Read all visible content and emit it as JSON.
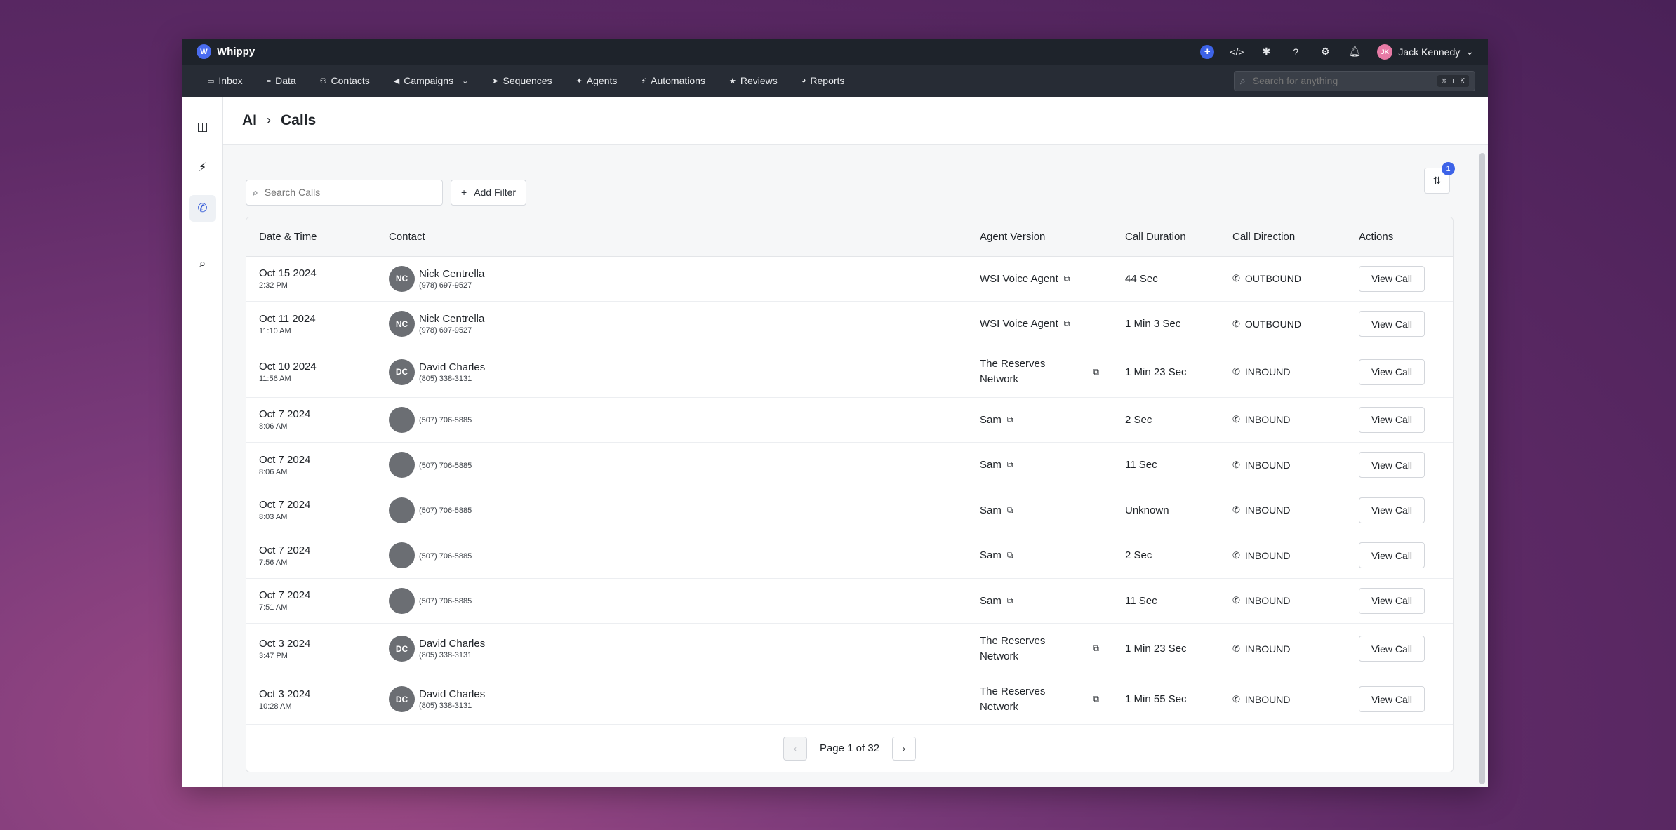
{
  "app": {
    "name": "Whippy"
  },
  "topbar": {
    "user_initials": "JK",
    "user_name": "Jack Kennedy"
  },
  "nav": {
    "items": [
      {
        "label": "Inbox",
        "icon": "inbox-icon"
      },
      {
        "label": "Data",
        "icon": "database-icon"
      },
      {
        "label": "Contacts",
        "icon": "contacts-icon"
      },
      {
        "label": "Campaigns",
        "icon": "megaphone-icon"
      },
      {
        "label": "Sequences",
        "icon": "send-icon"
      },
      {
        "label": "Agents",
        "icon": "sparkle-icon"
      },
      {
        "label": "Automations",
        "icon": "bolt-icon"
      },
      {
        "label": "Reviews",
        "icon": "star-icon"
      },
      {
        "label": "Reports",
        "icon": "pie-chart-icon"
      }
    ],
    "search_placeholder": "Search for anything",
    "search_shortcut": "⌘ + K"
  },
  "breadcrumb": {
    "parent": "AI",
    "current": "Calls"
  },
  "toolbar": {
    "search_placeholder": "Search Calls",
    "add_filter_label": "Add Filter",
    "sort_badge": "1"
  },
  "table": {
    "headers": [
      "Date & Time",
      "Contact",
      "Agent Version",
      "Call Duration",
      "Call Direction",
      "Actions"
    ],
    "action_label": "View Call",
    "rows": [
      {
        "date": "Oct 15 2024",
        "time": "2:32 PM",
        "initials": "NC",
        "name": "Nick Centrella",
        "phone": "(978) 697-9527",
        "agent": "WSI Voice Agent",
        "duration": "44 Sec",
        "direction": "OUTBOUND"
      },
      {
        "date": "Oct 11 2024",
        "time": "11:10 AM",
        "initials": "NC",
        "name": "Nick Centrella",
        "phone": "(978) 697-9527",
        "agent": "WSI Voice Agent",
        "duration": "1 Min 3 Sec",
        "direction": "OUTBOUND"
      },
      {
        "date": "Oct 10 2024",
        "time": "11:56 AM",
        "initials": "DC",
        "name": "David Charles",
        "phone": "(805) 338-3131",
        "agent": "The Reserves Network",
        "duration": "1 Min 23 Sec",
        "direction": "INBOUND"
      },
      {
        "date": "Oct 7 2024",
        "time": "8:06 AM",
        "initials": "",
        "name": "",
        "phone": "(507) 706-5885",
        "agent": "Sam",
        "duration": "2 Sec",
        "direction": "INBOUND"
      },
      {
        "date": "Oct 7 2024",
        "time": "8:06 AM",
        "initials": "",
        "name": "",
        "phone": "(507) 706-5885",
        "agent": "Sam",
        "duration": "11 Sec",
        "direction": "INBOUND"
      },
      {
        "date": "Oct 7 2024",
        "time": "8:03 AM",
        "initials": "",
        "name": "",
        "phone": "(507) 706-5885",
        "agent": "Sam",
        "duration": "Unknown",
        "direction": "INBOUND"
      },
      {
        "date": "Oct 7 2024",
        "time": "7:56 AM",
        "initials": "",
        "name": "",
        "phone": "(507) 706-5885",
        "agent": "Sam",
        "duration": "2 Sec",
        "direction": "INBOUND"
      },
      {
        "date": "Oct 7 2024",
        "time": "7:51 AM",
        "initials": "",
        "name": "",
        "phone": "(507) 706-5885",
        "agent": "Sam",
        "duration": "11 Sec",
        "direction": "INBOUND"
      },
      {
        "date": "Oct 3 2024",
        "time": "3:47 PM",
        "initials": "DC",
        "name": "David Charles",
        "phone": "(805) 338-3131",
        "agent": "The Reserves Network",
        "duration": "1 Min 23 Sec",
        "direction": "INBOUND"
      },
      {
        "date": "Oct 3 2024",
        "time": "10:28 AM",
        "initials": "DC",
        "name": "David Charles",
        "phone": "(805) 338-3131",
        "agent": "The Reserves Network",
        "duration": "1 Min 55 Sec",
        "direction": "INBOUND"
      }
    ]
  },
  "pagination": {
    "prefix": "Page",
    "current": "1",
    "of": "of",
    "total": "32"
  }
}
